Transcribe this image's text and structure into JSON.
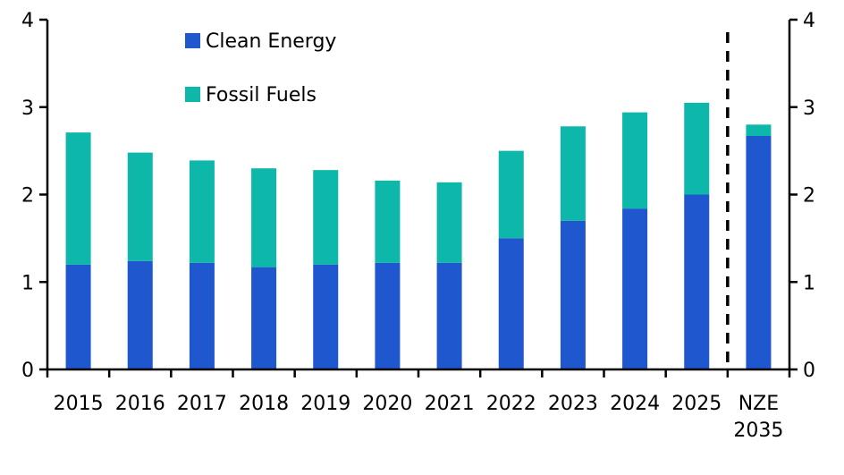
{
  "chart_data": {
    "type": "bar",
    "stacked": true,
    "categories": [
      "2015",
      "2016",
      "2017",
      "2018",
      "2019",
      "2020",
      "2021",
      "2022",
      "2023",
      "2024",
      "2025",
      "NZE 2035"
    ],
    "category_lines": [
      [
        "2015"
      ],
      [
        "2016"
      ],
      [
        "2017"
      ],
      [
        "2018"
      ],
      [
        "2019"
      ],
      [
        "2020"
      ],
      [
        "2021"
      ],
      [
        "2022"
      ],
      [
        "2023"
      ],
      [
        "2024"
      ],
      [
        "2025"
      ],
      [
        "NZE",
        "2035"
      ]
    ],
    "series": [
      {
        "name": "Clean Energy",
        "color": "#1f57cf",
        "values": [
          1.2,
          1.24,
          1.22,
          1.17,
          1.2,
          1.22,
          1.22,
          1.5,
          1.7,
          1.84,
          2.0,
          2.67
        ]
      },
      {
        "name": "Fossil Fuels",
        "color": "#0db8ab",
        "values": [
          1.51,
          1.24,
          1.17,
          1.13,
          1.08,
          0.94,
          0.92,
          1.0,
          1.08,
          1.1,
          1.05,
          0.13
        ]
      }
    ],
    "ylim": [
      0,
      4
    ],
    "yticks": [
      "0",
      "1",
      "2",
      "3",
      "4"
    ],
    "ytick_values": [
      0,
      1,
      2,
      3,
      4
    ],
    "secondary_yticks": [
      "0",
      "1",
      "2",
      "3",
      "4"
    ],
    "divider_after_category": "2025",
    "legend_position": "top-left",
    "title": "",
    "xlabel": "",
    "ylabel": ""
  }
}
